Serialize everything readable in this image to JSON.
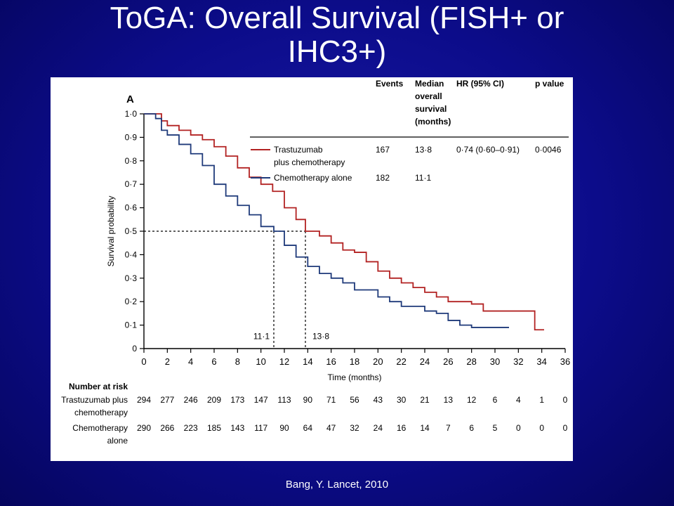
{
  "slide": {
    "title_line1": "ToGA: Overall Survival (FISH+ or",
    "title_line2": "IHC3+)",
    "citation": "Bang, Y.  Lancet, 2010"
  },
  "chart_data": {
    "type": "line",
    "panel_label": "A",
    "xlabel": "Time (months)",
    "ylabel": "Survival probability",
    "xlim": [
      0,
      36
    ],
    "ylim": [
      0,
      1
    ],
    "x_ticks": [
      "0",
      "2",
      "4",
      "6",
      "8",
      "10",
      "12",
      "14",
      "16",
      "18",
      "20",
      "22",
      "24",
      "26",
      "28",
      "30",
      "32",
      "34",
      "36"
    ],
    "y_ticks": [
      "0",
      "0·1",
      "0·2",
      "0·3",
      "0·4",
      "0·5",
      "0·6",
      "0·7",
      "0·8",
      "0·9",
      "1·0"
    ],
    "colors": {
      "trastuzumab": "#b22222",
      "chemo": "#1f3a7a"
    },
    "series": [
      {
        "name": "Trastuzumab plus chemotherapy",
        "legend_line1": "Trastuzumab",
        "legend_line2": "plus chemotherapy",
        "color": "#b22222",
        "points": [
          [
            0,
            1.0
          ],
          [
            1,
            1.0
          ],
          [
            1.5,
            0.97
          ],
          [
            2,
            0.95
          ],
          [
            3,
            0.93
          ],
          [
            4,
            0.91
          ],
          [
            5,
            0.89
          ],
          [
            6,
            0.86
          ],
          [
            7,
            0.82
          ],
          [
            8,
            0.77
          ],
          [
            9,
            0.73
          ],
          [
            10,
            0.7
          ],
          [
            11,
            0.67
          ],
          [
            12,
            0.6
          ],
          [
            13,
            0.55
          ],
          [
            13.8,
            0.5
          ],
          [
            15,
            0.48
          ],
          [
            16,
            0.45
          ],
          [
            17,
            0.42
          ],
          [
            18,
            0.41
          ],
          [
            19,
            0.37
          ],
          [
            20,
            0.33
          ],
          [
            21,
            0.3
          ],
          [
            22,
            0.28
          ],
          [
            23,
            0.26
          ],
          [
            24,
            0.24
          ],
          [
            25,
            0.22
          ],
          [
            26,
            0.2
          ],
          [
            28,
            0.19
          ],
          [
            29,
            0.16
          ],
          [
            31,
            0.16
          ],
          [
            33,
            0.16
          ],
          [
            33.4,
            0.08
          ],
          [
            34.2,
            0.08
          ]
        ]
      },
      {
        "name": "Chemotherapy alone",
        "legend_line1": "Chemotherapy alone",
        "color": "#1f3a7a",
        "points": [
          [
            0,
            1.0
          ],
          [
            1,
            0.98
          ],
          [
            1.5,
            0.93
          ],
          [
            2,
            0.91
          ],
          [
            3,
            0.87
          ],
          [
            4,
            0.83
          ],
          [
            5,
            0.78
          ],
          [
            6,
            0.7
          ],
          [
            7,
            0.65
          ],
          [
            8,
            0.61
          ],
          [
            9,
            0.57
          ],
          [
            10,
            0.52
          ],
          [
            11.1,
            0.5
          ],
          [
            12,
            0.44
          ],
          [
            13,
            0.39
          ],
          [
            14,
            0.35
          ],
          [
            15,
            0.32
          ],
          [
            16,
            0.3
          ],
          [
            17,
            0.28
          ],
          [
            18,
            0.25
          ],
          [
            20,
            0.22
          ],
          [
            21,
            0.2
          ],
          [
            22,
            0.18
          ],
          [
            24,
            0.16
          ],
          [
            25,
            0.15
          ],
          [
            26,
            0.12
          ],
          [
            27,
            0.1
          ],
          [
            28,
            0.09
          ],
          [
            30,
            0.09
          ],
          [
            31.2,
            0.09
          ]
        ]
      }
    ],
    "median_markers": [
      {
        "x": 11.1,
        "label": "11·1"
      },
      {
        "x": 13.8,
        "label": "13·8"
      }
    ],
    "stats_table": {
      "headers": [
        "Events",
        "Median",
        "overall",
        "survival",
        "(months)",
        "HR (95% CI)",
        "p value"
      ],
      "rows": [
        {
          "events": "167",
          "median": "13·8",
          "hr": "0·74 (0·60–0·91)",
          "p": "0·0046"
        },
        {
          "events": "182",
          "median": "11·1",
          "hr": "",
          "p": ""
        }
      ]
    },
    "number_at_risk": {
      "title": "Number at risk",
      "rows": [
        {
          "label_line1": "Trastuzumab plus",
          "label_line2": "chemotherapy",
          "values": [
            "294",
            "277",
            "246",
            "209",
            "173",
            "147",
            "113",
            "90",
            "71",
            "56",
            "43",
            "30",
            "21",
            "13",
            "12",
            "6",
            "4",
            "1",
            "0"
          ]
        },
        {
          "label_line1": "Chemotherapy",
          "label_line2": "alone",
          "values": [
            "290",
            "266",
            "223",
            "185",
            "143",
            "117",
            "90",
            "64",
            "47",
            "32",
            "24",
            "16",
            "14",
            "7",
            "6",
            "5",
            "0",
            "0",
            "0"
          ]
        }
      ]
    }
  }
}
